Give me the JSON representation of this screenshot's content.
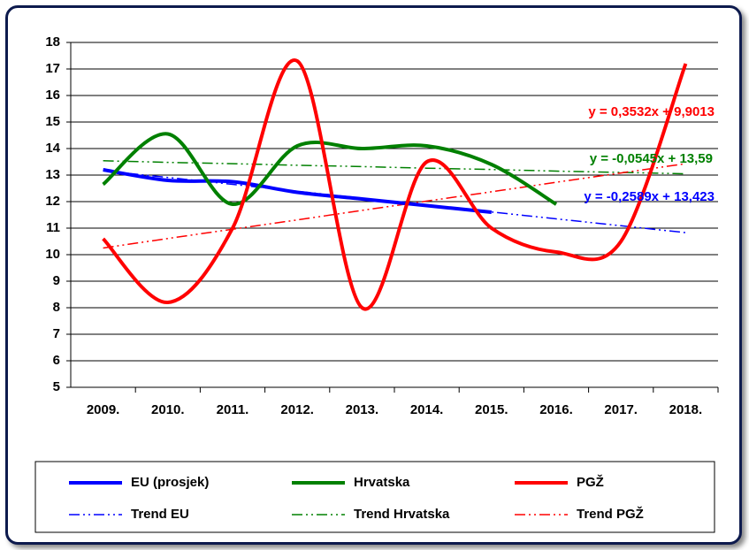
{
  "chart_data": {
    "type": "line",
    "categories": [
      "2009.",
      "2010.",
      "2011.",
      "2012.",
      "2013.",
      "2014.",
      "2015.",
      "2016.",
      "2017.",
      "2018."
    ],
    "ylim": [
      5,
      18
    ],
    "yticks": [
      5,
      6,
      7,
      8,
      9,
      10,
      11,
      12,
      13,
      14,
      15,
      16,
      17,
      18
    ],
    "grid": true,
    "series": [
      {
        "name": "EU (prosjek)",
        "color": "#0000ff",
        "style": "solid",
        "values": [
          13.2,
          12.8,
          12.75,
          12.35,
          12.1,
          11.85,
          11.6,
          null,
          null,
          null
        ]
      },
      {
        "name": "Hrvatska",
        "color": "#008000",
        "style": "solid",
        "values": [
          12.65,
          14.55,
          11.9,
          14.1,
          14.0,
          14.1,
          13.4,
          11.9,
          null,
          null
        ]
      },
      {
        "name": "PGŽ",
        "color": "#ff0000",
        "style": "solid",
        "values": [
          10.6,
          8.2,
          11.0,
          17.3,
          8.0,
          13.5,
          11.0,
          10.1,
          10.5,
          17.2
        ]
      },
      {
        "name": "Trend EU",
        "color": "#0000ff",
        "style": "dashdot",
        "values": [
          13.16,
          12.91,
          12.65,
          12.39,
          12.13,
          11.87,
          11.61,
          11.35,
          11.09,
          10.83
        ]
      },
      {
        "name": "Trend Hrvatska",
        "color": "#008000",
        "style": "dashdot",
        "values": [
          13.54,
          13.48,
          13.43,
          13.37,
          13.32,
          13.26,
          13.21,
          13.15,
          13.1,
          13.05
        ]
      },
      {
        "name": "Trend PGŽ",
        "color": "#ff0000",
        "style": "dashdot",
        "values": [
          10.25,
          10.61,
          10.96,
          11.31,
          11.67,
          12.02,
          12.37,
          12.73,
          13.08,
          13.43
        ]
      }
    ],
    "annotations": [
      {
        "text": "y = 0,3532x + 9,9013",
        "color": "#ff0000"
      },
      {
        "text": "y = -0,0545x + 13,59",
        "color": "#008000"
      },
      {
        "text": "y = -0,2589x + 13,423",
        "color": "#0000ff"
      }
    ]
  }
}
